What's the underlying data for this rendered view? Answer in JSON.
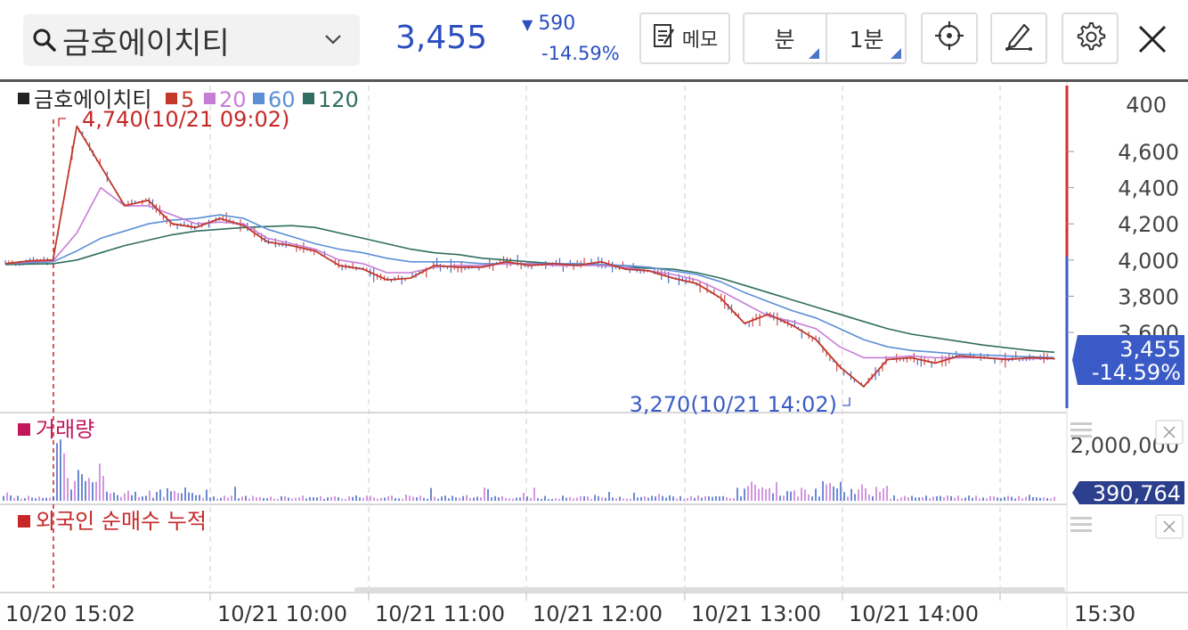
{
  "header": {
    "stock_name": "금호에이치티",
    "price": "3,455",
    "change_abs": "590",
    "change_pct": "-14.59%",
    "change_direction": "down",
    "memo_label": "메모",
    "period_unit": "분",
    "period_value": "1분"
  },
  "icons": {
    "search": "search-icon",
    "chevron": "chevron-down-icon",
    "memo": "memo-icon",
    "crosshair": "crosshair-icon",
    "draw": "pen-icon",
    "settings": "gear-icon",
    "close": "close-icon",
    "panel_remove": "close-icon",
    "panel_handle": "drag-handle-icon"
  },
  "legend": {
    "stock": "금호에이치티",
    "ma": [
      {
        "period": "5",
        "color": "#c0392b"
      },
      {
        "period": "20",
        "color": "#c77dd6"
      },
      {
        "period": "60",
        "color": "#5b8fd6"
      },
      {
        "period": "120",
        "color": "#2f6e60"
      }
    ]
  },
  "annotations": {
    "high": "4,740(10/21 09:02)",
    "low": "3,270(10/21 14:02)"
  },
  "price_axis": {
    "top_label": "400",
    "ticks": [
      "4,600",
      "4,400",
      "4,200",
      "4,000",
      "3,800",
      "3,600"
    ],
    "current_price": "3,455",
    "current_pct": "-14.59%"
  },
  "volume_panel": {
    "title": "거래량",
    "axis_label": "2,000,000",
    "current_value": "390,764"
  },
  "foreign_panel": {
    "title": "외국인 순매수 누적"
  },
  "time_axis": {
    "labels": [
      "10/20 15:02",
      "10/21 10:00",
      "10/21 11:00",
      "10/21 12:00",
      "10/21 13:00",
      "10/21 14:00"
    ],
    "end_label": "15:30"
  },
  "colors": {
    "price_blue": "#2c4fc0",
    "ma5": "#c0392b",
    "ma20": "#c77dd6",
    "ma60": "#5b8fd6",
    "ma120": "#2f6e60",
    "volume": "#c2185b",
    "foreign": "#c62828",
    "down_axis_bg": "#3a5bc7"
  },
  "chart_data": {
    "type": "line",
    "price_axis_range": [
      3270,
      4740
    ],
    "series": [
      {
        "name": "5",
        "values": [
          3980,
          3995,
          4000,
          4740,
          4520,
          4300,
          4330,
          4200,
          4180,
          4230,
          4190,
          4100,
          4080,
          4050,
          3970,
          3950,
          3890,
          3900,
          3970,
          3960,
          3960,
          3990,
          3970,
          3980,
          3970,
          3990,
          3950,
          3940,
          3900,
          3870,
          3790,
          3650,
          3700,
          3640,
          3560,
          3410,
          3300,
          3450,
          3460,
          3430,
          3470,
          3460,
          3450,
          3460,
          3455
        ]
      },
      {
        "name": "20",
        "values": [
          3980,
          3990,
          3995,
          4150,
          4400,
          4300,
          4300,
          4250,
          4200,
          4210,
          4200,
          4120,
          4090,
          4060,
          4000,
          3980,
          3930,
          3930,
          3960,
          3970,
          3970,
          3980,
          3980,
          3970,
          3970,
          3970,
          3960,
          3940,
          3920,
          3890,
          3830,
          3760,
          3690,
          3660,
          3620,
          3520,
          3460,
          3460,
          3470,
          3460,
          3460,
          3460,
          3455,
          3455,
          3455
        ]
      },
      {
        "name": "60",
        "values": [
          3980,
          3985,
          3990,
          4050,
          4120,
          4160,
          4200,
          4220,
          4230,
          4250,
          4230,
          4170,
          4130,
          4090,
          4060,
          4040,
          4010,
          3990,
          3990,
          3990,
          3980,
          3980,
          3980,
          3980,
          3980,
          3975,
          3970,
          3960,
          3940,
          3920,
          3880,
          3820,
          3770,
          3720,
          3680,
          3620,
          3560,
          3520,
          3500,
          3490,
          3480,
          3475,
          3470,
          3465,
          3460
        ]
      },
      {
        "name": "120",
        "values": [
          3975,
          3978,
          3980,
          4000,
          4040,
          4080,
          4110,
          4140,
          4160,
          4170,
          4180,
          4185,
          4190,
          4180,
          4150,
          4120,
          4090,
          4060,
          4040,
          4030,
          4010,
          4000,
          3990,
          3980,
          3975,
          3970,
          3960,
          3955,
          3950,
          3930,
          3900,
          3860,
          3820,
          3780,
          3740,
          3700,
          3660,
          3620,
          3590,
          3570,
          3550,
          3530,
          3515,
          3500,
          3490
        ]
      }
    ]
  }
}
